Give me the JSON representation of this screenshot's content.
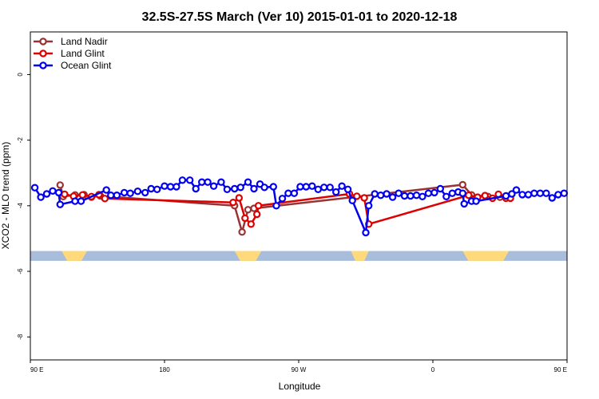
{
  "chart_data": {
    "type": "line",
    "title": "32.5S-27.5S March (Ver 10)   2015-01-01 to 2020-12-18",
    "xlabel": "Longitude",
    "ylabel": "XCO2 - MLO trend (ppm)",
    "x_unit": "degrees longitude (0-360 East, left edge 90 E)",
    "xlim": [
      90,
      450
    ],
    "ylim": [
      -8.7,
      1.3
    ],
    "x_ticks": [
      {
        "value": 90,
        "label": "90 E"
      },
      {
        "value": 180,
        "label": "180"
      },
      {
        "value": 270,
        "label": "90 W"
      },
      {
        "value": 360,
        "label": "0"
      },
      {
        "value": 450,
        "label": "90 E"
      },
      {
        "value": 540,
        "label": "180"
      }
    ],
    "y_ticks": [
      {
        "value": 0,
        "label": "0"
      },
      {
        "value": -2,
        "label": "-2"
      },
      {
        "value": -4,
        "label": "-4"
      },
      {
        "value": -6,
        "label": "-6"
      },
      {
        "value": -8,
        "label": "-8"
      }
    ],
    "grid": false,
    "legend_position": "top-left",
    "land_band": {
      "y_top": -5.38,
      "y_bottom": -5.68,
      "ocean_color": "#a8bcdc",
      "land_color": "#ffd97a",
      "land_segments": [
        [
          111,
          128
        ],
        [
          227,
          245
        ],
        [
          305,
          317
        ],
        [
          380,
          411
        ],
        [
          453,
          471
        ]
      ]
    },
    "series": [
      {
        "name": "Land Nadir",
        "color": "#993333",
        "points": [
          [
            110,
            -3.37
          ],
          [
            112,
            -3.72
          ],
          [
            120,
            -3.67
          ],
          [
            126,
            -3.66
          ],
          [
            131,
            -3.74
          ],
          [
            137,
            -3.7
          ],
          [
            227,
            -4.0
          ],
          [
            232,
            -4.8
          ],
          [
            236,
            -4.12
          ],
          [
            240,
            -4.08
          ],
          [
            380,
            -3.36
          ],
          [
            386,
            -3.67
          ],
          [
            397,
            -3.72
          ],
          [
            405,
            -3.74
          ]
        ]
      },
      {
        "name": "Land Glint",
        "color": "#dd0000",
        "points": [
          [
            113,
            -3.65
          ],
          [
            119,
            -3.71
          ],
          [
            125,
            -3.67
          ],
          [
            131,
            -3.72
          ],
          [
            136,
            -3.66
          ],
          [
            140,
            -3.78
          ],
          [
            226,
            -3.9
          ],
          [
            230,
            -3.76
          ],
          [
            234,
            -4.38
          ],
          [
            238,
            -4.56
          ],
          [
            242,
            -4.26
          ],
          [
            243,
            -4.0
          ],
          [
            304,
            -3.64
          ],
          [
            309,
            -3.71
          ],
          [
            314,
            -3.76
          ],
          [
            317,
            -4.56
          ],
          [
            384,
            -3.68
          ],
          [
            390,
            -3.74
          ],
          [
            395,
            -3.69
          ],
          [
            400,
            -3.77
          ],
          [
            404,
            -3.65
          ],
          [
            409,
            -3.77
          ],
          [
            412,
            -3.77
          ]
        ]
      },
      {
        "name": "Ocean Glint",
        "color": "#0000ee",
        "points": [
          [
            93,
            -3.45
          ],
          [
            97,
            -3.74
          ],
          [
            101,
            -3.64
          ],
          [
            105,
            -3.55
          ],
          [
            109,
            -3.6
          ],
          [
            110,
            -3.96
          ],
          [
            120,
            -3.86
          ],
          [
            124,
            -3.86
          ],
          [
            141,
            -3.52
          ],
          [
            144,
            -3.68
          ],
          [
            148,
            -3.68
          ],
          [
            153,
            -3.6
          ],
          [
            157,
            -3.62
          ],
          [
            162,
            -3.56
          ],
          [
            167,
            -3.6
          ],
          [
            171,
            -3.48
          ],
          [
            175,
            -3.5
          ],
          [
            180,
            -3.4
          ],
          [
            184,
            -3.42
          ],
          [
            188,
            -3.42
          ],
          [
            192,
            -3.22
          ],
          [
            197,
            -3.22
          ],
          [
            201,
            -3.48
          ],
          [
            205,
            -3.28
          ],
          [
            209,
            -3.28
          ],
          [
            213,
            -3.4
          ],
          [
            218,
            -3.28
          ],
          [
            222,
            -3.5
          ],
          [
            227,
            -3.48
          ],
          [
            231,
            -3.44
          ],
          [
            236,
            -3.28
          ],
          [
            240,
            -3.48
          ],
          [
            244,
            -3.34
          ],
          [
            247,
            -3.44
          ],
          [
            253,
            -3.42
          ],
          [
            255,
            -4.0
          ],
          [
            259,
            -3.78
          ],
          [
            263,
            -3.62
          ],
          [
            267,
            -3.62
          ],
          [
            271,
            -3.42
          ],
          [
            275,
            -3.42
          ],
          [
            279,
            -3.4
          ],
          [
            283,
            -3.5
          ],
          [
            287,
            -3.44
          ],
          [
            291,
            -3.44
          ],
          [
            295,
            -3.58
          ],
          [
            299,
            -3.4
          ],
          [
            303,
            -3.5
          ],
          [
            306,
            -3.84
          ],
          [
            315,
            -4.82
          ],
          [
            317,
            -4.0
          ],
          [
            321,
            -3.64
          ],
          [
            325,
            -3.68
          ],
          [
            329,
            -3.64
          ],
          [
            333,
            -3.74
          ],
          [
            337,
            -3.62
          ],
          [
            341,
            -3.7
          ],
          [
            345,
            -3.7
          ],
          [
            349,
            -3.68
          ],
          [
            353,
            -3.72
          ],
          [
            357,
            -3.62
          ],
          [
            361,
            -3.6
          ],
          [
            365,
            -3.48
          ],
          [
            369,
            -3.72
          ],
          [
            373,
            -3.62
          ],
          [
            377,
            -3.58
          ],
          [
            380,
            -3.62
          ],
          [
            381,
            -3.94
          ],
          [
            386,
            -3.86
          ],
          [
            389,
            -3.86
          ],
          [
            409,
            -3.7
          ],
          [
            413,
            -3.64
          ],
          [
            416,
            -3.52
          ],
          [
            420,
            -3.66
          ],
          [
            424,
            -3.66
          ],
          [
            428,
            -3.62
          ],
          [
            432,
            -3.62
          ],
          [
            436,
            -3.62
          ],
          [
            440,
            -3.76
          ],
          [
            444,
            -3.66
          ],
          [
            448,
            -3.62
          ]
        ]
      }
    ]
  }
}
